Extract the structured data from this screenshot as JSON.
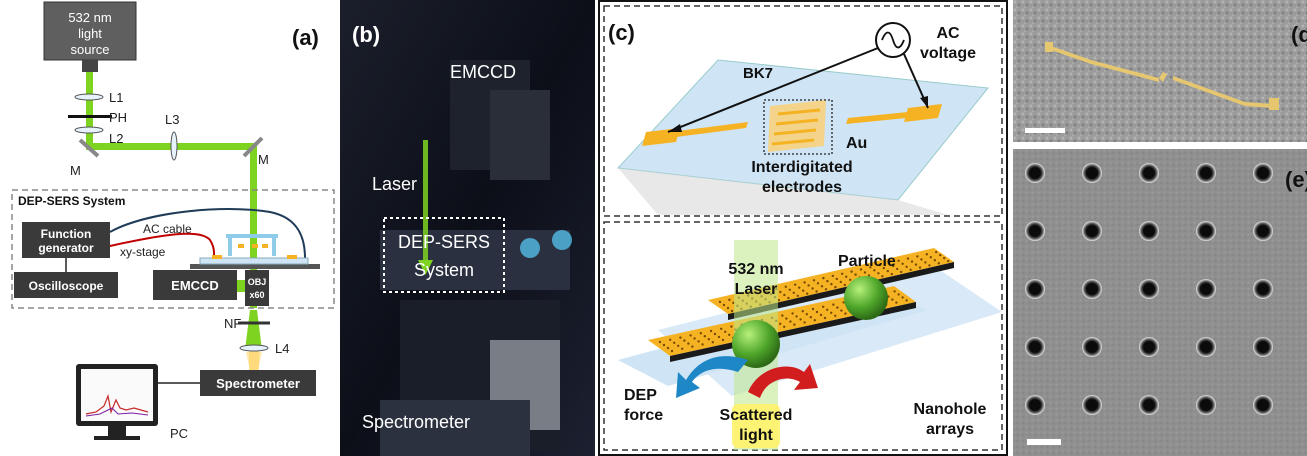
{
  "panel_a": {
    "tag": "(a)",
    "light_source": [
      "532 nm",
      "light",
      "source"
    ],
    "lens1": "L1",
    "pinhole": "PH",
    "lens2": "L2",
    "lens3": "L3",
    "mirror_left": "M",
    "mirror_right": "M",
    "system_title": "DEP-SERS System",
    "function_generator": [
      "Function",
      "generator"
    ],
    "ac_cable": "AC cable",
    "xy_stage": "xy-stage",
    "oscilloscope": "Oscilloscope",
    "emccd": "EMCCD",
    "objective": [
      "OBJ",
      "x60"
    ],
    "notch_filter": "NF",
    "lens4": "L4",
    "spectrometer": "Spectrometer",
    "pc": "PC"
  },
  "panel_b": {
    "tag": "(b)",
    "emccd": "EMCCD",
    "laser": "Laser",
    "system": [
      "DEP-SERS",
      "System"
    ],
    "spectrometer": "Spectrometer"
  },
  "panel_c": {
    "tag": "(c)",
    "ac_voltage": [
      "AC",
      "voltage"
    ],
    "substrate": "BK7",
    "gold": "Au",
    "electrodes": [
      "Interdigitated",
      "electrodes"
    ],
    "laser": [
      "532 nm",
      "Laser"
    ],
    "particle": "Particle",
    "dep_force": [
      "DEP",
      "force"
    ],
    "scattered_light": [
      "Scattered",
      "light"
    ],
    "nanohole": [
      "Nanohole",
      "arrays"
    ]
  },
  "panel_d": {
    "tag": "(d"
  },
  "panel_e": {
    "tag": "(e)"
  },
  "colors": {
    "beam": "#7ed321",
    "gold": "#f5b324",
    "glass": "#cfe4f5",
    "box": "#3a3a3a",
    "cable_red": "#c00000",
    "cable_blue": "#1f3b57"
  }
}
